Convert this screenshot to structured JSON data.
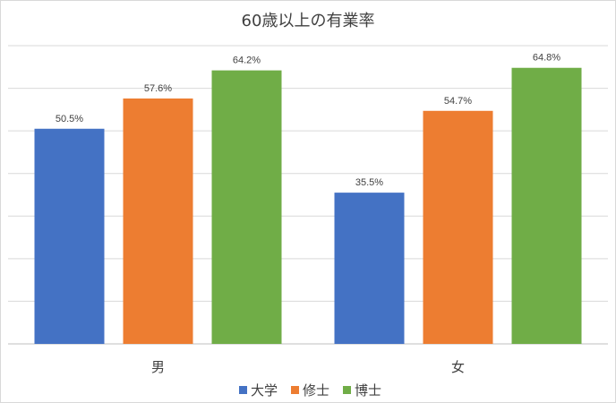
{
  "chart_data": {
    "type": "bar",
    "title": "60歳以上の有業率",
    "categories": [
      "男",
      "女"
    ],
    "series": [
      {
        "name": "大学",
        "values": [
          50.5,
          35.5
        ],
        "color": "#4472c4"
      },
      {
        "name": "修士",
        "values": [
          57.6,
          54.7
        ],
        "color": "#ed7d31"
      },
      {
        "name": "博士",
        "values": [
          64.2,
          64.8
        ],
        "color": "#70ad47"
      }
    ],
    "value_labels": [
      [
        "50.5%",
        "35.5%"
      ],
      [
        "57.6%",
        "54.7%"
      ],
      [
        "64.2%",
        "64.8%"
      ]
    ],
    "ylim": [
      0,
      70
    ],
    "grid": true,
    "legend": "bottom",
    "gridline_color": "#d9d9d9"
  }
}
